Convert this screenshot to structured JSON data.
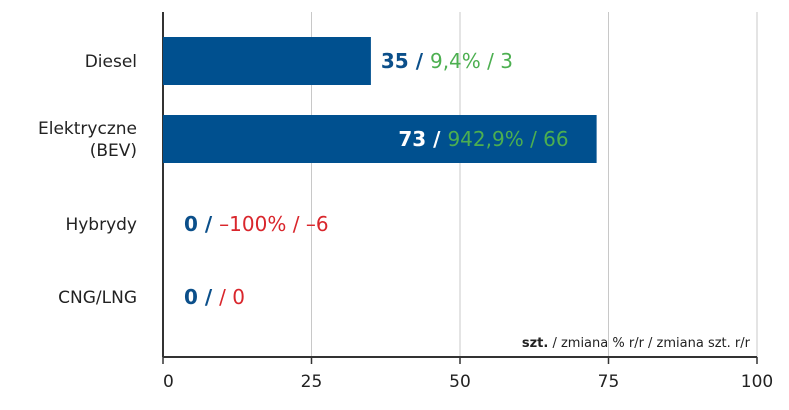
{
  "chart_data": {
    "type": "bar",
    "orientation": "horizontal",
    "categories": [
      [
        "Diesel"
      ],
      [
        "Elektryczne",
        "(BEV)"
      ],
      [
        "Hybrydy"
      ],
      [
        "CNG/LNG"
      ]
    ],
    "values": [
      35,
      73,
      0,
      0
    ],
    "labels": [
      {
        "count": "35",
        "pct": "9,4%",
        "diff": "3",
        "change": "positive"
      },
      {
        "count": "73",
        "pct": "942,9%",
        "diff": "66",
        "change": "positive"
      },
      {
        "count": "0",
        "pct": "–100%",
        "diff": "–6",
        "change": "negative"
      },
      {
        "count": "0",
        "pct": "",
        "diff": "0",
        "change": "negative"
      }
    ],
    "xlim": [
      0,
      100
    ],
    "xticks": [
      "0",
      "25",
      "50",
      "75",
      "100"
    ],
    "grid": true,
    "unit_note": {
      "bold": "szt.",
      "rest": " / zmiana % r/r / zmiana szt. r/r"
    },
    "colors": {
      "bar": "#00508f",
      "count": "#0b4f8a",
      "positive": "#4caf50",
      "negative": "#d9262c",
      "inside_count": "#ffffff"
    }
  }
}
